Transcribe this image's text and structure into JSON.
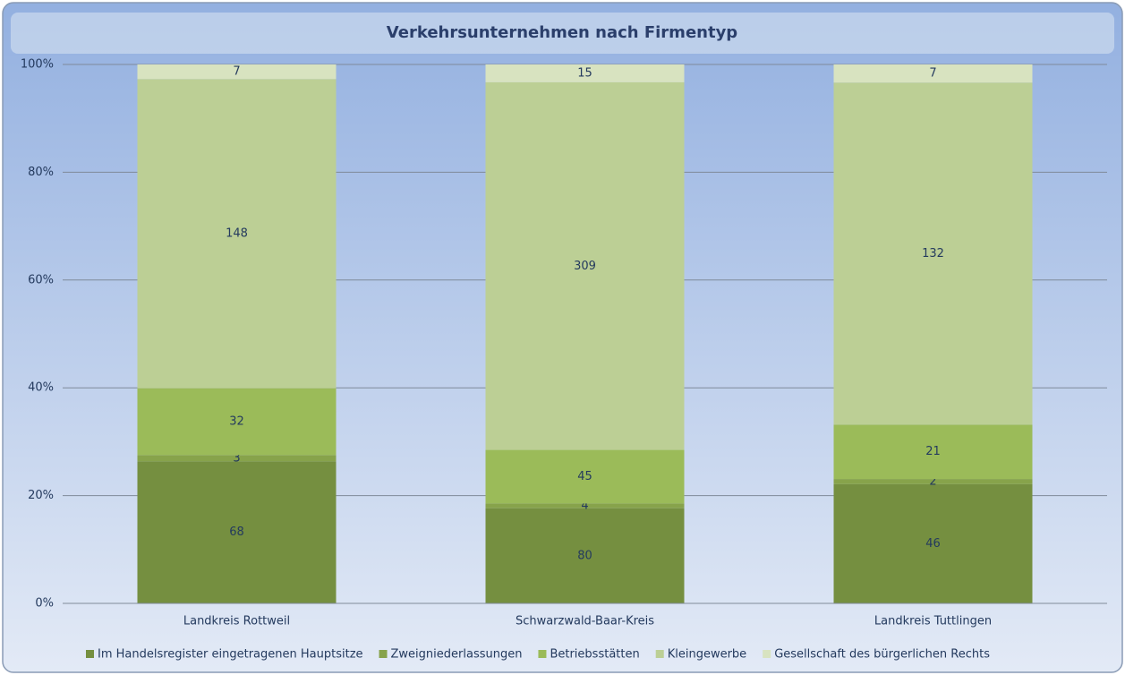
{
  "chart_data": {
    "type": "stacked_bar_100",
    "title": "Verkehrsunternehmen nach Firmentyp",
    "categories": [
      "Landkreis Rottweil",
      "Schwarzwald-Baar-Kreis",
      "Landkreis Tuttlingen"
    ],
    "series": [
      {
        "name": "Im Handelsregister eingetragenen Hauptsitze",
        "color": "#758f40",
        "values": [
          68,
          80,
          46
        ]
      },
      {
        "name": "Zweigniederlassungen",
        "color": "#87a34b",
        "values": [
          3,
          4,
          2
        ]
      },
      {
        "name": "Betriebsstätten",
        "color": "#9bbb59",
        "values": [
          32,
          45,
          21
        ]
      },
      {
        "name": "Kleingewerbe",
        "color": "#bccf95",
        "values": [
          148,
          309,
          132
        ]
      },
      {
        "name": "Gesellschaft des bürgerlichen Rechts",
        "color": "#d8e3c0",
        "values": [
          7,
          15,
          7
        ]
      }
    ],
    "ylim": [
      0,
      100
    ],
    "yticks": [
      {
        "value": 0,
        "label": "0%"
      },
      {
        "value": 20,
        "label": "20%"
      },
      {
        "value": 40,
        "label": "40%"
      },
      {
        "value": 60,
        "label": "60%"
      },
      {
        "value": 80,
        "label": "80%"
      },
      {
        "value": 100,
        "label": "100%"
      }
    ],
    "grid": true,
    "legend": "bottom"
  }
}
